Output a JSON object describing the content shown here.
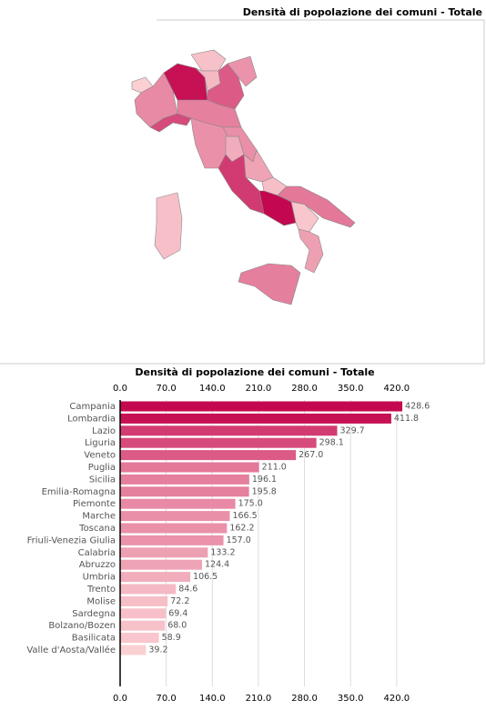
{
  "chart_data": [
    {
      "type": "map",
      "title": "Densità di popolazione dei comuni - Totale"
    },
    {
      "type": "bar",
      "title": "Densità di popolazione dei comuni - Totale",
      "categories": [
        "Campania",
        "Lombardia",
        "Lazio",
        "Liguria",
        "Veneto",
        "Puglia",
        "Sicilia",
        "Emilia-Romagna",
        "Piemonte",
        "Marche",
        "Toscana",
        "Friuli-Venezia Giulia",
        "Calabria",
        "Abruzzo",
        "Umbria",
        "Trento",
        "Molise",
        "Sardegna",
        "Bolzano/Bozen",
        "Basilicata",
        "Valle d'Aosta/Vallée"
      ],
      "values": [
        428.6,
        411.8,
        329.7,
        298.1,
        267.0,
        211.0,
        196.1,
        195.8,
        175.0,
        166.5,
        162.2,
        157.0,
        133.2,
        124.4,
        106.5,
        84.6,
        72.2,
        69.4,
        68.0,
        58.9,
        39.2
      ],
      "value_labels": [
        "428.6",
        "411.8",
        "329.7",
        "298.1",
        "267.0",
        "211.0",
        "196.1",
        "195.8",
        "175.0",
        "166.5",
        "162.2",
        "157.0",
        "133.2",
        "124.4",
        "106.5",
        "84.6",
        "72.2",
        "69.4",
        "68.0",
        "58.9",
        "39.2"
      ],
      "color_range": [
        "#fbd0d3",
        "#c4084f"
      ],
      "xlim": [
        0,
        470
      ],
      "xticks": [
        {
          "value": 0,
          "label": "0.0"
        },
        {
          "value": 70,
          "label": "70.0"
        },
        {
          "value": 140,
          "label": "140.0"
        },
        {
          "value": 210,
          "label": "210.0"
        },
        {
          "value": 280,
          "label": "280.0"
        },
        {
          "value": 350,
          "label": "350.0"
        },
        {
          "value": 420,
          "label": "420.0"
        }
      ],
      "grid": true
    }
  ]
}
